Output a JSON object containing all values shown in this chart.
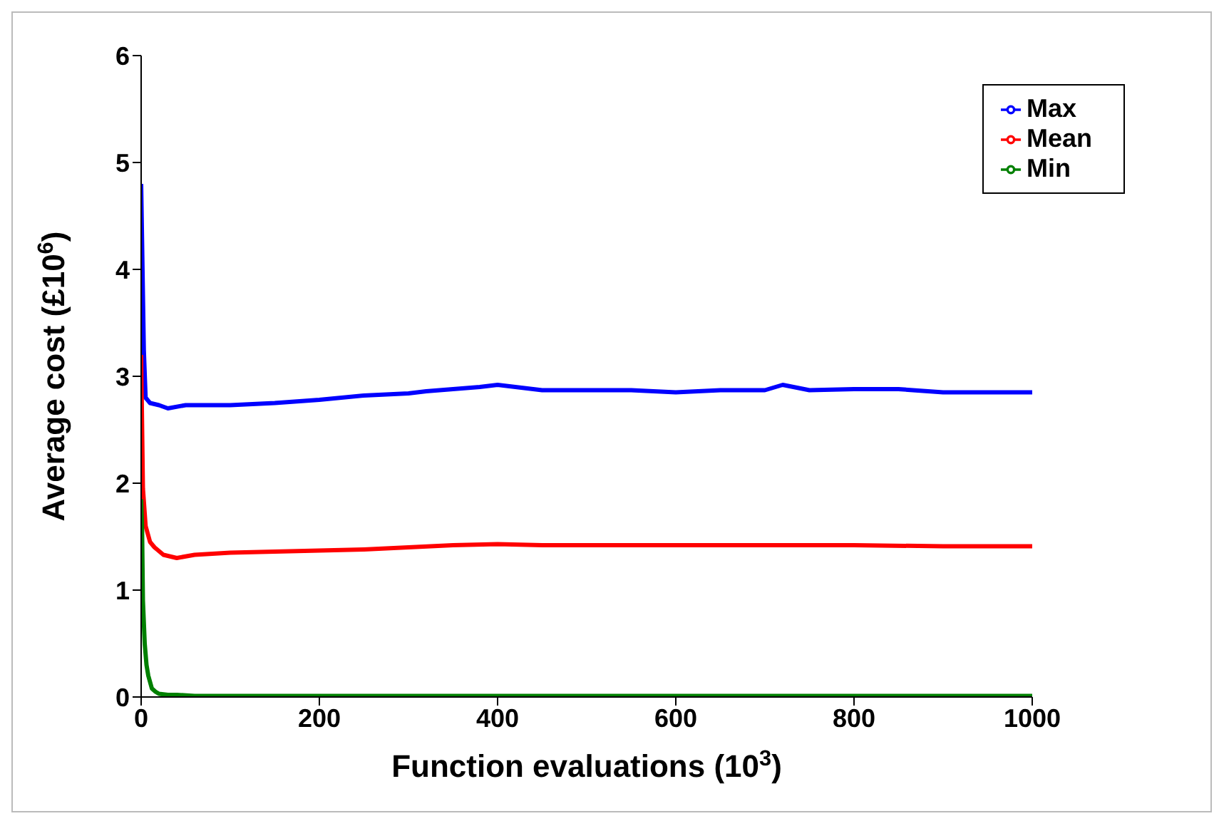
{
  "chart_data": {
    "type": "line",
    "xlabel": "Function evaluations (10$^{3}$)",
    "ylabel": "Average cost (£10$^{6}$)",
    "xlim": [
      0,
      1000
    ],
    "ylim": [
      0,
      6
    ],
    "xticks": [
      0,
      200,
      400,
      600,
      800,
      1000
    ],
    "yticks": [
      0,
      1,
      2,
      3,
      4,
      5,
      6
    ],
    "grid": false,
    "legend": "top right",
    "marker": "none",
    "line_style": "solid",
    "series": [
      {
        "name": "Min",
        "color": "#008000",
        "x": [
          0,
          1,
          2,
          4,
          6,
          8,
          12,
          16,
          20,
          30,
          40,
          60,
          100,
          200,
          400,
          600,
          800,
          1000
        ],
        "values": [
          1.85,
          1.6,
          0.9,
          0.5,
          0.3,
          0.2,
          0.08,
          0.05,
          0.03,
          0.02,
          0.02,
          0.01,
          0.01,
          0.01,
          0.01,
          0.01,
          0.01,
          0.01
        ]
      },
      {
        "name": "Mean",
        "color": "#ff0000",
        "x": [
          0,
          2,
          5,
          10,
          15,
          25,
          40,
          60,
          100,
          150,
          200,
          250,
          300,
          350,
          400,
          450,
          500,
          600,
          700,
          800,
          900,
          1000
        ],
        "values": [
          3.2,
          1.95,
          1.6,
          1.45,
          1.4,
          1.33,
          1.3,
          1.33,
          1.35,
          1.36,
          1.37,
          1.38,
          1.4,
          1.42,
          1.43,
          1.42,
          1.42,
          1.42,
          1.42,
          1.42,
          1.41,
          1.41
        ]
      },
      {
        "name": "Max",
        "color": "#0000ff",
        "x": [
          0,
          3,
          5,
          10,
          20,
          30,
          50,
          100,
          150,
          200,
          250,
          300,
          320,
          350,
          380,
          400,
          450,
          500,
          550,
          600,
          650,
          700,
          720,
          750,
          800,
          850,
          900,
          950,
          1000
        ],
        "values": [
          4.8,
          3.25,
          2.8,
          2.75,
          2.73,
          2.7,
          2.73,
          2.73,
          2.75,
          2.78,
          2.82,
          2.84,
          2.86,
          2.88,
          2.9,
          2.92,
          2.87,
          2.87,
          2.87,
          2.85,
          2.87,
          2.87,
          2.92,
          2.87,
          2.88,
          2.88,
          2.85,
          2.85,
          2.85
        ]
      }
    ]
  }
}
